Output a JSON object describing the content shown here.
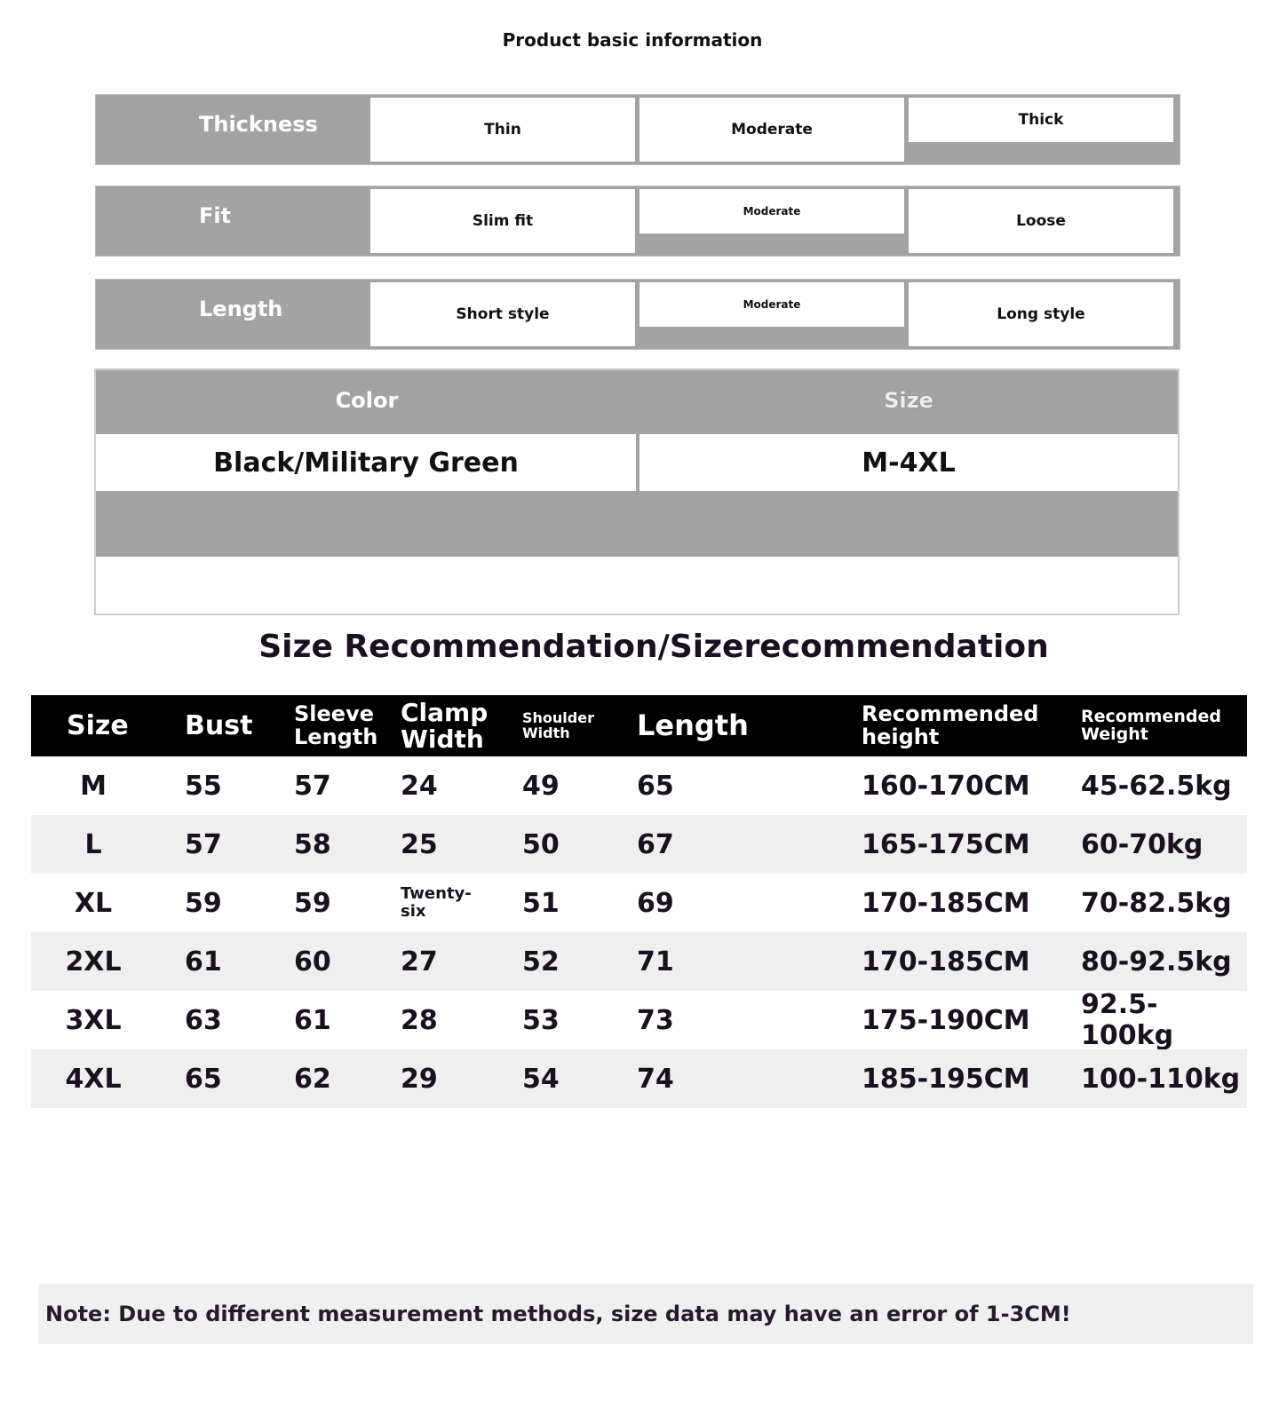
{
  "title": "Product basic information",
  "attributes": [
    {
      "label": "Thickness",
      "options": [
        "Thin",
        "Moderate",
        "Thick"
      ]
    },
    {
      "label": "Fit",
      "options": [
        "Slim fit",
        "Moderate",
        "Loose"
      ]
    },
    {
      "label": "Length",
      "options": [
        "Short style",
        "Moderate",
        "Long style"
      ]
    }
  ],
  "color": {
    "label": "Color",
    "value": "Black/Military Green"
  },
  "size": {
    "label": "Size",
    "value": "M-4XL"
  },
  "section_title": "Size Recommendation/Sizerecommendation",
  "table": {
    "headers": [
      "Size",
      "Bust",
      "Sleeve Length",
      "Clamp Width",
      "Shoulder Width",
      "Length",
      "Recommended height",
      "Recommended Weight"
    ],
    "rows": [
      [
        "M",
        "55",
        "57",
        "24",
        "49",
        "65",
        "160-170CM",
        "45-62.5kg"
      ],
      [
        "L",
        "57",
        "58",
        "25",
        "50",
        "67",
        "165-175CM",
        "60-70kg"
      ],
      [
        "XL",
        "59",
        "59",
        "Twenty-six",
        "51",
        "69",
        "170-185CM",
        "70-82.5kg"
      ],
      [
        "2XL",
        "61",
        "60",
        "27",
        "52",
        "71",
        "170-185CM",
        "80-92.5kg"
      ],
      [
        "3XL",
        "63",
        "61",
        "28",
        "53",
        "73",
        "175-190CM",
        "92.5-100kg"
      ],
      [
        "4XL",
        "65",
        "62",
        "29",
        "54",
        "74",
        "185-195CM",
        "100-110kg"
      ]
    ]
  },
  "note": "Note: Due to different measurement methods, size data may have an error of 1-3CM!"
}
